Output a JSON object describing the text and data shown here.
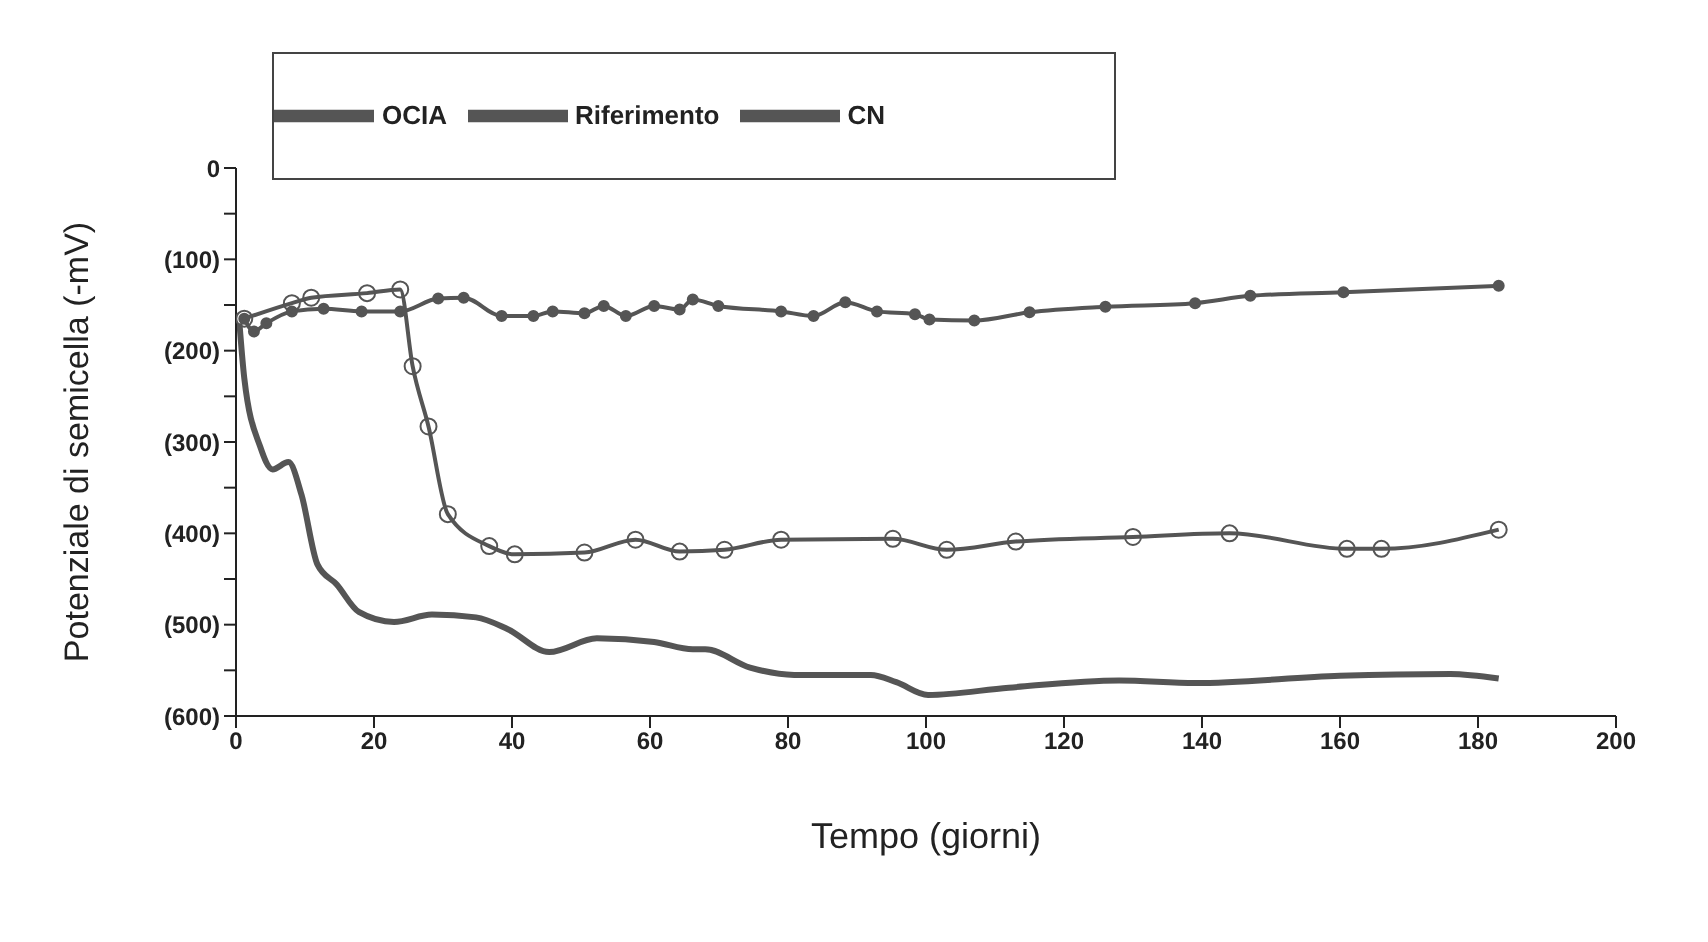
{
  "chart_data": {
    "type": "line",
    "xlabel": "Tempo (giorni)",
    "ylabel": "Potenziale di semicella (-mV)",
    "xlim": [
      0,
      200
    ],
    "xticks": [
      0,
      20,
      40,
      60,
      80,
      100,
      120,
      140,
      160,
      180,
      200
    ],
    "ylim": [
      600,
      0
    ],
    "yticks": [
      0,
      {
        "value": 50,
        "label": null
      },
      {
        "value": 100,
        "label": "(100)"
      },
      {
        "value": 150,
        "label": null
      },
      {
        "value": 200,
        "label": "(200)"
      },
      {
        "value": 250,
        "label": null
      },
      {
        "value": 300,
        "label": "(300)"
      },
      {
        "value": 350,
        "label": null
      },
      {
        "value": 400,
        "label": "(400)"
      },
      {
        "value": 450,
        "label": null
      },
      {
        "value": 500,
        "label": "(500)"
      },
      {
        "value": 550,
        "label": null
      },
      {
        "value": 600,
        "label": "(600)"
      }
    ],
    "legend": "top left",
    "series": [
      {
        "name": "OCIA",
        "color": "#555555",
        "marker": "circle",
        "x": [
          1.2,
          2.6,
          4.4,
          8.1,
          12.7,
          18.2,
          23.8,
          29.3,
          33,
          38.5,
          43.1,
          45.9,
          50.5,
          53.3,
          56.5,
          60.6,
          64.3,
          66.2,
          69.9,
          79,
          83.7,
          88.3,
          92.9,
          98.4,
          100.5,
          107,
          115,
          126,
          139,
          147,
          160.5,
          183
        ],
        "values": [
          165,
          179,
          170,
          157,
          154,
          157,
          157,
          143,
          142,
          162,
          162,
          157,
          159,
          151,
          162,
          151,
          155,
          144,
          151,
          157,
          162,
          147,
          157,
          160,
          166,
          167,
          158,
          152,
          148,
          140,
          136,
          129
        ]
      },
      {
        "name": "Riferimento",
        "color": "#555555",
        "marker": "none",
        "x": [
          0.5,
          1.2,
          3.5,
          5.3,
          7.6,
          9.5,
          11.8,
          14.6,
          17.8,
          22.9,
          28.4,
          34.8,
          39.4,
          45.4,
          52.3,
          60.6,
          66.2,
          68,
          74.5,
          80.9,
          92,
          95.7,
          100.3,
          112,
          128,
          139,
          160,
          176,
          183
        ],
        "values": [
          170,
          230,
          305,
          330,
          322,
          358,
          434,
          456,
          486,
          497,
          489,
          492,
          505,
          530,
          515,
          519,
          527,
          527,
          547,
          555,
          555,
          563,
          577,
          569,
          561,
          564,
          556,
          554,
          559
        ]
      },
      {
        "name": "CN",
        "color": "#555555",
        "marker": "circle",
        "x": [
          1.2,
          8.1,
          10.9,
          19,
          23.8,
          25.6,
          27.9,
          30.7,
          36.7,
          40.4,
          50.5,
          57.9,
          64.3,
          70.8,
          79,
          95.2,
          103,
          113,
          130,
          144,
          161,
          166,
          183
        ],
        "values": [
          165,
          148,
          142,
          137,
          133,
          217,
          283,
          379,
          414,
          423,
          421,
          407,
          420,
          418,
          407,
          406,
          418,
          409,
          404,
          400,
          417,
          417,
          396
        ]
      }
    ]
  }
}
